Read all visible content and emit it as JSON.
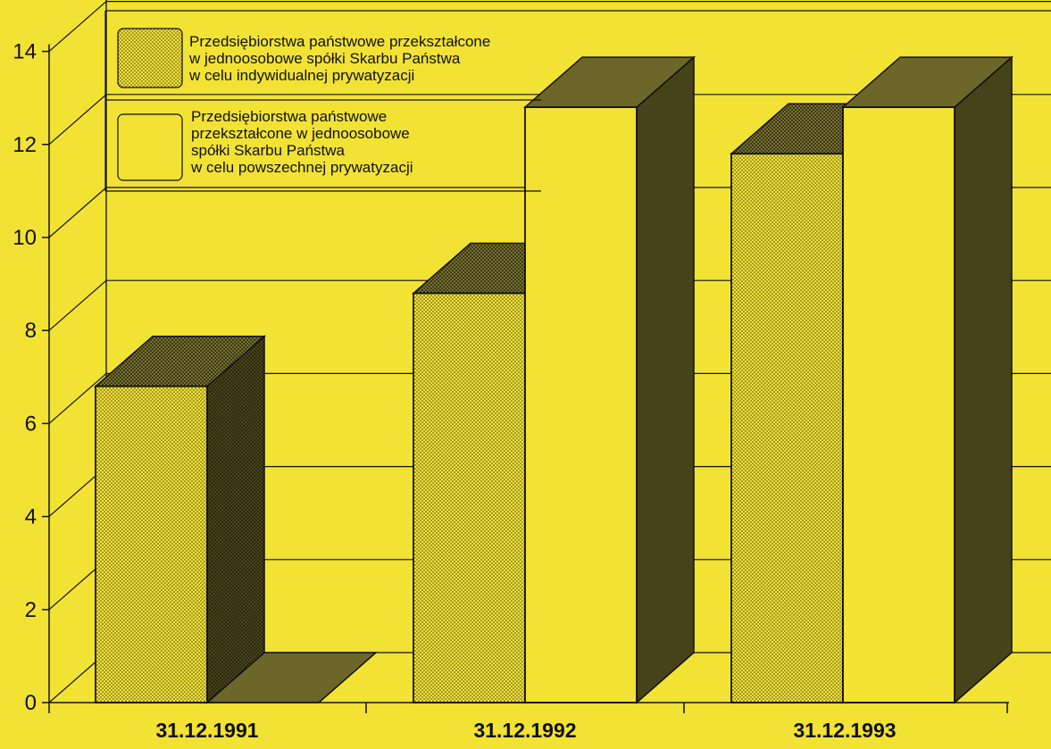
{
  "chart_data": {
    "type": "bar",
    "title": "",
    "xlabel": "",
    "ylabel": "",
    "categories": [
      "31.12.1991",
      "31.12.1992",
      "31.12.1993"
    ],
    "series": [
      {
        "name": "Przedsiębiorstwa państwowe przekształcone w jednoosobowe spółki Skarbu Państwa w celu indywidualnej prywatyzacji",
        "legend_lines": [
          "Przedsiębiorstwa państwowe przekształcone",
          "w jednoosobowe spółki Skarbu Państwa",
          "w celu indywidualnej prywatyzacji"
        ],
        "pattern": "dotted",
        "values": [
          6.8,
          8.8,
          11.8
        ]
      },
      {
        "name": "Przedsiębiorstwa państwowe przekształcone w jednoosobowe spółki Skarbu Państwa w celu powszechnej prywatyzacji",
        "legend_lines": [
          "Przedsiębiorstwa państwowe",
          "przekształcone w jednoosobowe",
          "spółki Skarbu Państwa",
          "w celu powszechnej prywatyzacji"
        ],
        "pattern": "plain",
        "values": [
          0,
          12.8,
          12.8
        ]
      }
    ],
    "yticks": [
      0,
      2,
      4,
      6,
      8,
      10,
      12,
      14
    ],
    "ylim": [
      0,
      14
    ],
    "three_d": true,
    "grid": true,
    "legend_position": "top-left",
    "colors": {
      "background": "#f2e234",
      "bar_face": "#f2e234",
      "bar_side": "#46421a",
      "bar_top": "#6c6628",
      "line": "#111111"
    }
  }
}
